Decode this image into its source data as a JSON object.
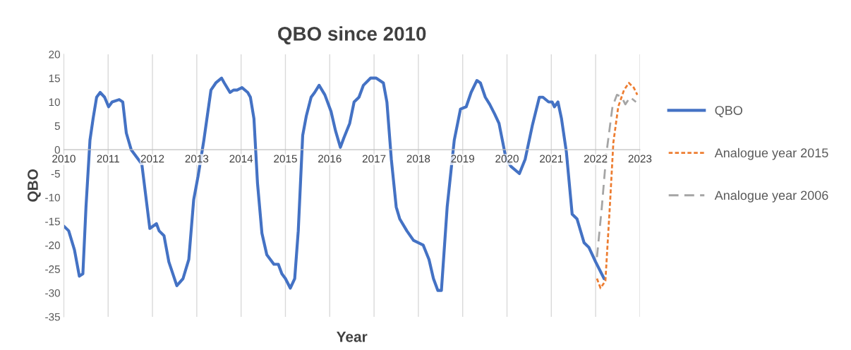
{
  "chart_data": {
    "type": "line",
    "title": "QBO since 2010",
    "xlabel": "Year",
    "ylabel": "QBO",
    "xlim": [
      2010,
      2023
    ],
    "xticks": [
      2010,
      2011,
      2012,
      2013,
      2014,
      2015,
      2016,
      2017,
      2018,
      2019,
      2020,
      2021,
      2022,
      2023
    ],
    "ylim": [
      -35,
      20
    ],
    "yticks": [
      -35,
      -30,
      -25,
      -20,
      -15,
      -10,
      -5,
      0,
      5,
      10,
      15,
      20
    ],
    "grid": "x",
    "legend": "right",
    "marker": "none",
    "series": [
      {
        "name": "QBO",
        "color": "#4472c4",
        "line_style": "solid",
        "x": [
          2010.0,
          2010.11,
          2010.24,
          2010.35,
          2010.43,
          2010.5,
          2010.59,
          2010.66,
          2010.74,
          2010.82,
          2010.92,
          2011.01,
          2011.09,
          2011.25,
          2011.33,
          2011.41,
          2011.52,
          2011.6,
          2011.68,
          2011.76,
          2011.84,
          2011.94,
          2012.09,
          2012.15,
          2012.26,
          2012.37,
          2012.55,
          2012.69,
          2012.82,
          2012.93,
          2013.03,
          2013.16,
          2013.32,
          2013.43,
          2013.56,
          2013.62,
          2013.75,
          2013.83,
          2013.91,
          2014.02,
          2014.15,
          2014.21,
          2014.29,
          2014.37,
          2014.47,
          2014.58,
          2014.74,
          2014.84,
          2014.92,
          2015.0,
          2015.11,
          2015.21,
          2015.29,
          2015.39,
          2015.47,
          2015.58,
          2015.66,
          2015.76,
          2015.89,
          2016.03,
          2016.13,
          2016.24,
          2016.32,
          2016.45,
          2016.55,
          2016.66,
          2016.76,
          2016.92,
          2017.05,
          2017.21,
          2017.29,
          2017.39,
          2017.5,
          2017.58,
          2017.74,
          2017.89,
          2018.11,
          2018.24,
          2018.34,
          2018.44,
          2018.52,
          2018.65,
          2018.81,
          2018.95,
          2019.08,
          2019.19,
          2019.32,
          2019.4,
          2019.51,
          2019.61,
          2019.72,
          2019.82,
          2019.98,
          2020.09,
          2020.28,
          2020.41,
          2020.57,
          2020.73,
          2020.81,
          2020.94,
          2021.02,
          2021.07,
          2021.15,
          2021.23,
          2021.34,
          2021.47,
          2021.58,
          2021.74,
          2021.85,
          2022.0,
          2022.19
        ],
        "values": [
          -16,
          -17,
          -21,
          -26.5,
          -26,
          -12,
          2,
          6.5,
          11,
          12,
          11,
          9,
          10,
          10.5,
          10,
          3.5,
          0,
          -1,
          -2,
          -3,
          -9,
          -16.5,
          -15.5,
          -17,
          -18,
          -23.5,
          -28.5,
          -27,
          -23,
          -10.5,
          -5.5,
          2,
          12.5,
          14,
          15,
          14,
          12,
          12.5,
          12.5,
          13,
          12,
          11,
          6.5,
          -7,
          -17.5,
          -22,
          -24,
          -24,
          -26,
          -27,
          -29,
          -27,
          -17,
          3,
          7,
          11,
          12,
          13.5,
          11.5,
          8,
          4,
          0.5,
          2.5,
          5.5,
          10,
          11,
          13.5,
          15,
          15,
          14,
          10,
          -2,
          -12,
          -14.5,
          -17,
          -19,
          -20,
          -23,
          -27,
          -29.5,
          -29.5,
          -12,
          2,
          8.5,
          9,
          12,
          14.5,
          14,
          11,
          9.5,
          7.5,
          5.5,
          -2,
          -3.5,
          -5,
          -2,
          5,
          11,
          11,
          10,
          10,
          9,
          10,
          6.5,
          -0.5,
          -13.5,
          -14.5,
          -19.5,
          -20.5,
          -23.5,
          -27
        ]
      },
      {
        "name": "Analogue year 2015",
        "color": "#ed7d31",
        "line_style": "dotted",
        "x": [
          2022.03,
          2022.11,
          2022.22,
          2022.32,
          2022.4,
          2022.51,
          2022.64,
          2022.75,
          2022.86,
          2022.94
        ],
        "values": [
          -27,
          -29,
          -27.5,
          -12,
          1.5,
          9,
          12.5,
          14,
          13,
          11.5
        ]
      },
      {
        "name": "Analogue year 2006",
        "color": "#a5a5a5",
        "line_style": "dashed",
        "x": [
          2022.03,
          2022.14,
          2022.24,
          2022.38,
          2022.48,
          2022.59,
          2022.67,
          2022.78,
          2022.91
        ],
        "values": [
          -22.5,
          -12,
          -1,
          9,
          11.5,
          11,
          9.5,
          11,
          10
        ]
      }
    ]
  }
}
